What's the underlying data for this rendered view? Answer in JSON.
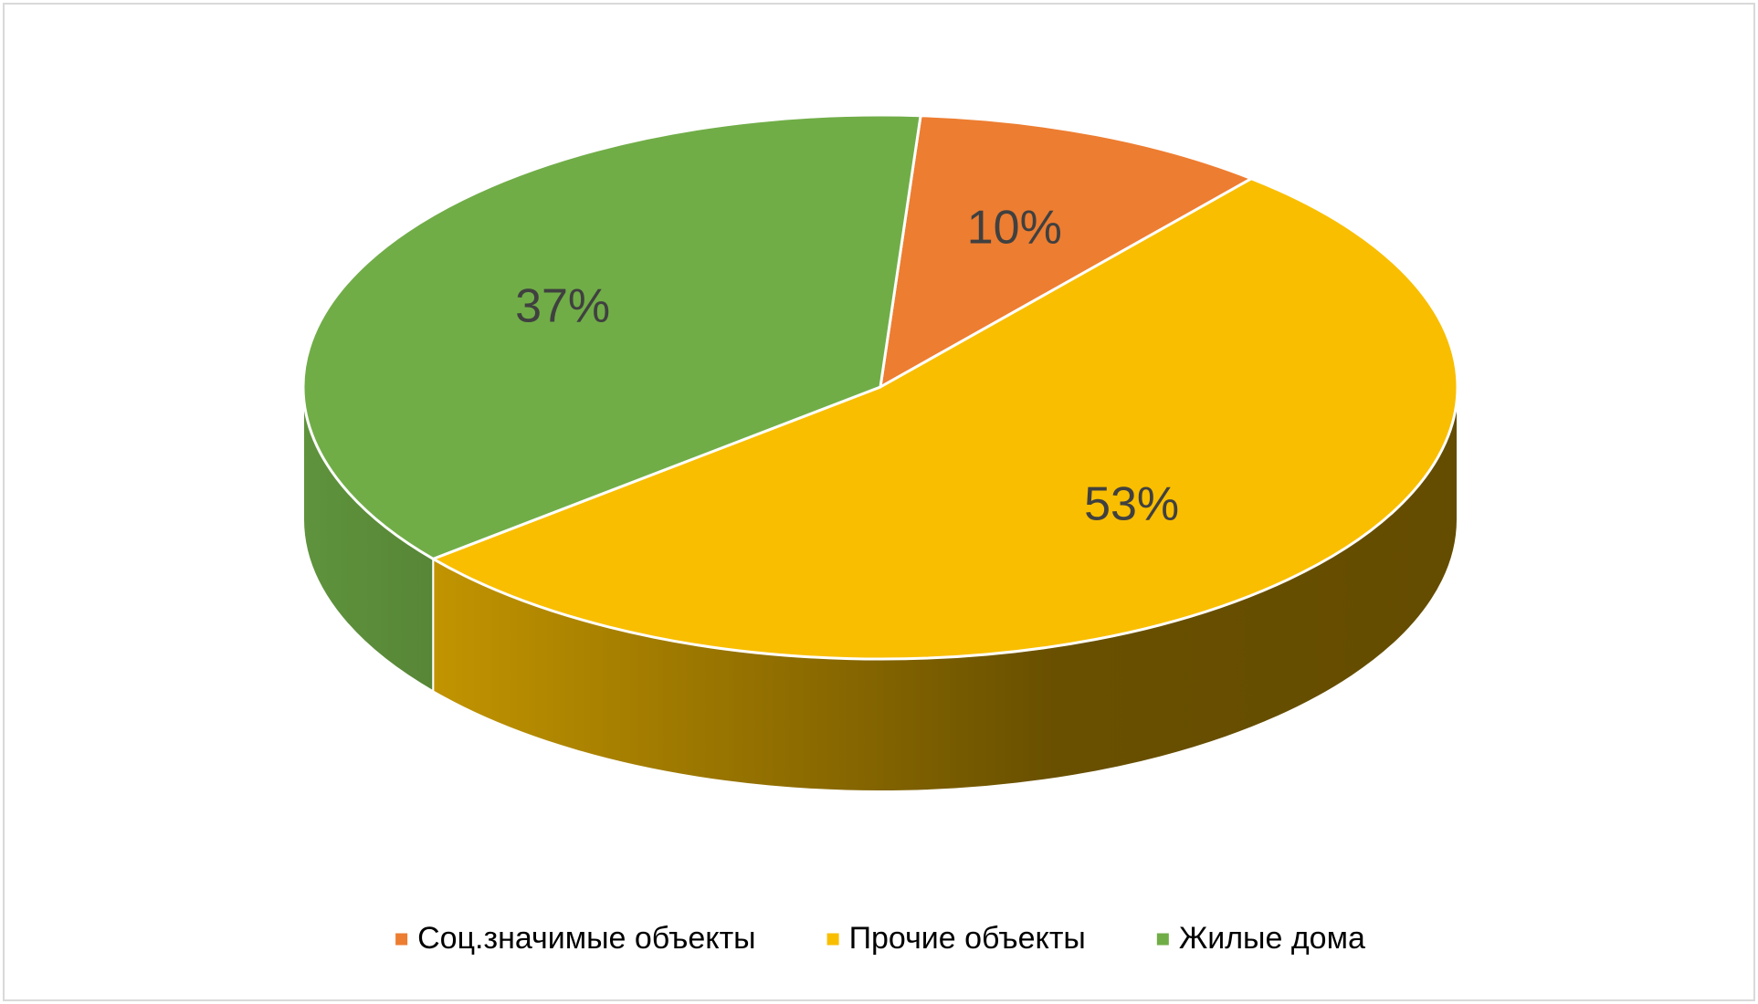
{
  "chart_data": {
    "type": "pie",
    "categories": [
      "Соц.значимые объекты",
      "Прочие объекты",
      "Жилые дома"
    ],
    "values": [
      10,
      53,
      37
    ],
    "value_labels": [
      "10%",
      "53%",
      "37%"
    ],
    "colors": [
      "#ED7D31",
      "#F9BE00",
      "#70AD47"
    ],
    "legend": "bottom"
  }
}
